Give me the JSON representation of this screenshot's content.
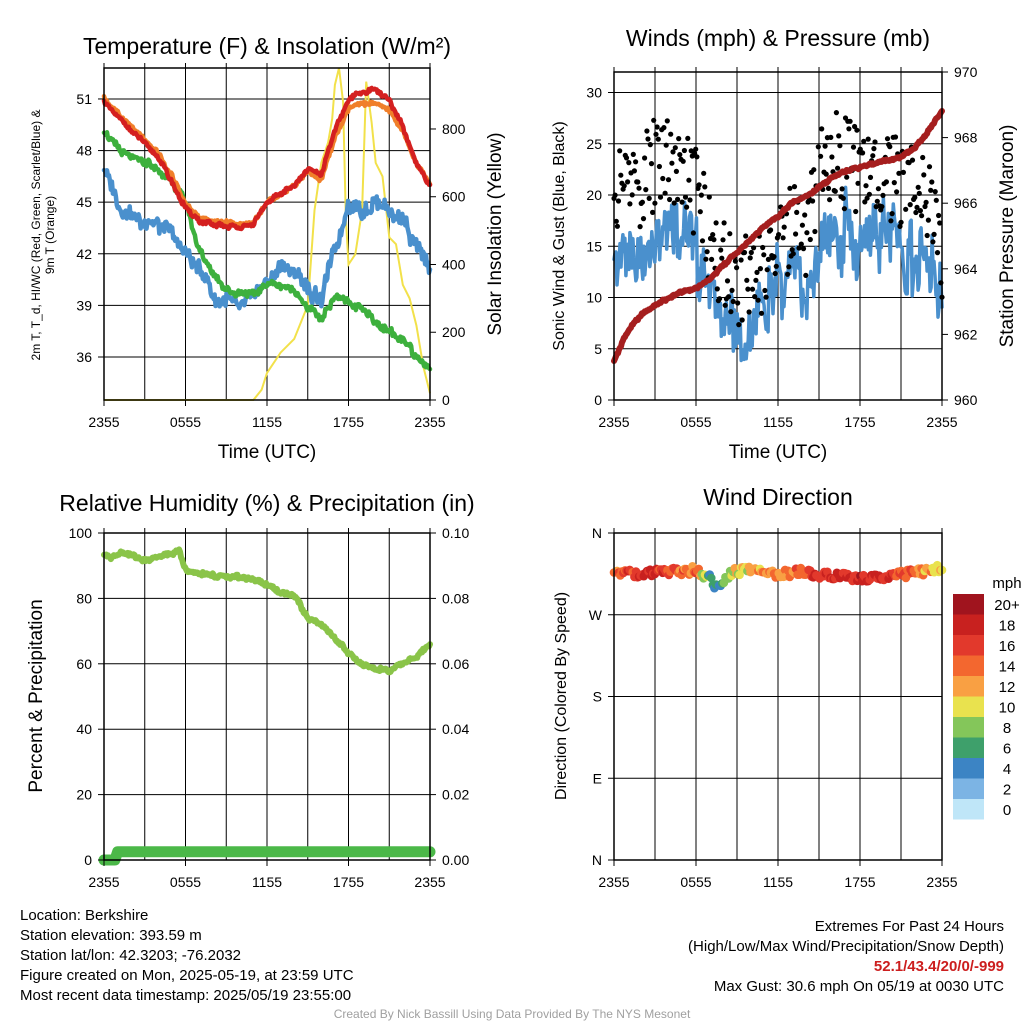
{
  "chart_data": [
    {
      "type": "line",
      "title": "Temperature (F) & Insolation (W/m²)",
      "xlabel": "Time (UTC)",
      "ylabel": "2m T, T_d, HI/WC (Red, Green, Scarlet/Blue) & 9m T (Orange)",
      "ylabel_right": "Solar Insolation (Yellow)",
      "x_ticks": [
        "2355",
        "0555",
        "1155",
        "1755",
        "2355"
      ],
      "ylim": [
        33.5,
        52.8
      ],
      "y_ticks": [
        36,
        39,
        42,
        45,
        48,
        51
      ],
      "ylim_right": [
        0,
        980
      ],
      "y_ticks_right": [
        0,
        200,
        400,
        600,
        800
      ],
      "grid": true,
      "series": [
        {
          "name": "2m T",
          "axis": "left",
          "color": "#d42020",
          "x": [
            0,
            1,
            2,
            3,
            4,
            5,
            6,
            7,
            8,
            9,
            10,
            11,
            12,
            13,
            14,
            15,
            16,
            17,
            18,
            19,
            20,
            21,
            22,
            23,
            24
          ],
          "values": [
            50.8,
            50,
            49.2,
            48.4,
            47.6,
            46.2,
            44.6,
            43.9,
            43.7,
            43.6,
            43.5,
            43.7,
            45,
            45.5,
            46,
            46.9,
            46.6,
            49.2,
            51,
            51.4,
            51.6,
            50.9,
            49.4,
            47.2,
            46
          ]
        },
        {
          "name": "9m T",
          "axis": "left",
          "color": "#f07f2a",
          "x": [
            0,
            1,
            2,
            3,
            4,
            5,
            6,
            7,
            8,
            9,
            10,
            11,
            12,
            13,
            14,
            15,
            16,
            17,
            18,
            19,
            20,
            21,
            22,
            23,
            24
          ],
          "values": [
            51,
            50.2,
            49.4,
            48.6,
            47.8,
            46.5,
            44.9,
            44.1,
            43.9,
            43.8,
            43.7,
            43.8,
            45,
            45.5,
            46,
            46.8,
            46.3,
            48.8,
            50.4,
            50.7,
            50.8,
            50.3,
            49.1,
            47.2,
            46.1
          ]
        },
        {
          "name": "T_d",
          "axis": "left",
          "color": "#3db03d",
          "x": [
            0,
            1,
            2,
            3,
            4,
            5,
            6,
            7,
            8,
            9,
            10,
            11,
            12,
            13,
            14,
            15,
            16,
            17,
            18,
            19,
            20,
            21,
            22,
            23,
            24
          ],
          "values": [
            49.2,
            48.1,
            47.7,
            47.4,
            46.9,
            46.2,
            45,
            42.3,
            40.8,
            40,
            39.6,
            39.7,
            40.2,
            40.2,
            39.8,
            38.9,
            38.2,
            39.5,
            39.2,
            38.7,
            38,
            37.5,
            37,
            36,
            35.3
          ]
        },
        {
          "name": "HI/WC",
          "axis": "left",
          "color": "#4a90cd",
          "x": [
            0,
            1,
            2,
            3,
            4,
            5,
            6,
            7,
            8,
            9,
            10,
            11,
            12,
            13,
            14,
            15,
            16,
            17,
            18,
            19,
            20,
            21,
            22,
            23,
            24
          ],
          "values": [
            46.9,
            44.8,
            44.2,
            43.9,
            43.6,
            43.2,
            42,
            41.2,
            39.6,
            39.2,
            38.9,
            39.4,
            40.5,
            41.1,
            41.1,
            39.8,
            39.4,
            42.3,
            44.8,
            44.5,
            44.9,
            44.4,
            43.9,
            42.4,
            41.4
          ]
        },
        {
          "name": "Solar Insolation",
          "axis": "right",
          "color": "#f2e14a",
          "x": [
            0,
            2,
            4,
            6,
            7,
            8,
            9,
            10,
            11,
            11.6,
            12,
            13,
            14,
            15,
            15.5,
            16,
            16.5,
            16.8,
            17,
            17.3,
            17.6,
            17.8,
            18,
            18.5,
            19,
            19.3,
            19.7,
            20,
            20.5,
            21,
            21.5,
            22,
            22.5,
            23,
            23.5,
            24
          ],
          "values": [
            0,
            0,
            0,
            0,
            0,
            0,
            0,
            0,
            0,
            30,
            80,
            140,
            180,
            280,
            560,
            700,
            760,
            830,
            930,
            980,
            880,
            540,
            400,
            430,
            560,
            940,
            820,
            700,
            660,
            480,
            460,
            340,
            300,
            220,
            100,
            20
          ]
        }
      ]
    },
    {
      "type": "line",
      "title": "Winds (mph) & Pressure (mb)",
      "xlabel": "Time (UTC)",
      "ylabel": "Sonic Wind & Gust (Blue, Black)",
      "ylabel_right": "Station Pressure (Maroon)",
      "x_ticks": [
        "2355",
        "0555",
        "1155",
        "1755",
        "2355"
      ],
      "ylim": [
        0,
        32
      ],
      "y_ticks": [
        0,
        5,
        10,
        15,
        20,
        25,
        30
      ],
      "ylim_right": [
        960,
        970
      ],
      "y_ticks_right": [
        960,
        962,
        964,
        966,
        968,
        970
      ],
      "grid": true,
      "series": [
        {
          "name": "Sonic Wind",
          "axis": "left",
          "color": "#4a90cd",
          "x": [
            0,
            1,
            2,
            3,
            4,
            5,
            6,
            7,
            8,
            9,
            10,
            11,
            12,
            13,
            14,
            15,
            16,
            17,
            18,
            19,
            20,
            21,
            22,
            23,
            24
          ],
          "values": [
            12,
            14.5,
            14,
            15.5,
            16,
            16.5,
            15,
            11,
            8,
            6.5,
            7,
            9,
            11,
            12.5,
            11.5,
            15,
            16,
            16.5,
            15,
            15.5,
            16,
            15,
            13,
            14,
            9
          ]
        },
        {
          "name": "Gust",
          "axis": "left",
          "color": "#000000",
          "x": [
            0,
            1,
            2,
            3,
            4,
            5,
            6,
            7,
            8,
            9,
            10,
            11,
            12,
            13,
            14,
            15,
            16,
            17,
            18,
            19,
            20,
            21,
            22,
            23,
            24
          ],
          "values": [
            19,
            22,
            21,
            23,
            24,
            22,
            20,
            16,
            13,
            11,
            12,
            13,
            15,
            17,
            16,
            22,
            24,
            23,
            22,
            21,
            22,
            21,
            20,
            19,
            14
          ]
        },
        {
          "name": "Station Pressure",
          "axis": "right",
          "color": "#a51e1e",
          "x": [
            0,
            1,
            2,
            3,
            4,
            5,
            6,
            7,
            8,
            9,
            10,
            11,
            12,
            13,
            14,
            15,
            16,
            17,
            18,
            19,
            20,
            21,
            22,
            23,
            24
          ],
          "values": [
            961.2,
            962.1,
            962.6,
            962.9,
            963.1,
            963.3,
            963.4,
            963.7,
            964.1,
            964.5,
            964.9,
            965.3,
            965.6,
            966,
            966.2,
            966.5,
            966.8,
            967,
            967.1,
            967.2,
            967.3,
            967.4,
            967.7,
            968.2,
            968.8
          ]
        }
      ]
    },
    {
      "type": "line",
      "title": "Relative Humidity (%) & Precipitation (in)",
      "xlabel": "",
      "ylabel": "Percent & Precipitation",
      "x_ticks": [
        "2355",
        "0555",
        "1155",
        "1755",
        "2355"
      ],
      "ylim": [
        0,
        100
      ],
      "y_ticks": [
        0,
        20,
        40,
        60,
        80,
        100
      ],
      "ylim_right": [
        0,
        0.1
      ],
      "y_ticks_right": [
        "0.00",
        "0.02",
        "0.04",
        "0.06",
        "0.08",
        "0.10"
      ],
      "grid": true,
      "series": [
        {
          "name": "Relative Humidity",
          "axis": "left",
          "color": "#8ac449",
          "x": [
            0,
            0.5,
            1,
            2,
            3,
            4,
            5,
            5.5,
            6,
            7,
            8,
            9,
            10,
            11,
            12,
            13,
            14,
            15,
            16,
            17,
            18,
            19,
            20,
            21,
            22,
            23,
            24
          ],
          "values": [
            93.5,
            92,
            94,
            93,
            91.5,
            92.5,
            93.5,
            95,
            88.5,
            87.5,
            87,
            86.5,
            86.5,
            86,
            84,
            82,
            81,
            74,
            72,
            68,
            63,
            60,
            58.5,
            58,
            60,
            62,
            66
          ]
        },
        {
          "name": "Precipitation",
          "axis": "left",
          "color": "#4bb848",
          "x": [
            0,
            0.8,
            1,
            24
          ],
          "values": [
            0,
            0,
            2.5,
            2.5
          ]
        }
      ]
    },
    {
      "type": "scatter",
      "title": "Wind Direction",
      "xlabel": "",
      "ylabel": "Direction (Colored By Speed)",
      "x_ticks": [
        "2355",
        "0555",
        "1155",
        "1755",
        "2355"
      ],
      "y_ticks": [
        "N",
        "E",
        "S",
        "W",
        "N"
      ],
      "ylim": [
        0,
        360
      ],
      "grid": true,
      "legend": {
        "title": "mph",
        "labels": [
          "20+",
          "18",
          "16",
          "14",
          "12",
          "10",
          "8",
          "6",
          "4",
          "2",
          "0"
        ],
        "colors": [
          "#a0141e",
          "#c8211f",
          "#e2392c",
          "#f3672f",
          "#f9a043",
          "#e9e24e",
          "#84c65a",
          "#3ea06b",
          "#3c84c4",
          "#7cb4e4",
          "#bfe6f8"
        ]
      },
      "series": [
        {
          "name": "Direction",
          "x": [
            0,
            1,
            2,
            3,
            4,
            5,
            6,
            7,
            7.5,
            8,
            8.5,
            9,
            10,
            11,
            12,
            13,
            14,
            15,
            16,
            17,
            18,
            19,
            20,
            21,
            22,
            23,
            24
          ],
          "values": [
            318,
            316,
            314,
            316,
            318,
            316,
            320,
            310,
            298,
            306,
            316,
            318,
            320,
            317,
            314,
            316,
            318,
            314,
            313,
            312,
            311,
            311,
            313,
            314,
            316,
            318,
            322
          ],
          "speeds": [
            14,
            16,
            17,
            16,
            15,
            14,
            14,
            6,
            4,
            7,
            9,
            10,
            11,
            12,
            13,
            14,
            15,
            16,
            17,
            17,
            17,
            18,
            16,
            15,
            14,
            12,
            10
          ]
        }
      ]
    }
  ],
  "info": {
    "location": "Location: Berkshire",
    "elevation": "Station elevation: 393.59 m",
    "latlon": "Station lat/lon: 42.3203; -76.2032",
    "created": "Figure created on Mon, 2025-05-19, at 23:59 UTC",
    "recent": "Most recent data timestamp: 2025/05/19 23:55:00",
    "extremes_title": "Extremes For Past 24 Hours",
    "extremes_subtitle": "(High/Low/Max Wind/Precipitation/Snow Depth)",
    "extremes_values": "52.1/43.4/20/0/-999",
    "max_gust": "Max Gust: 30.6 mph On 05/19 at 0030 UTC",
    "credit": "Created By Nick Bassill Using Data Provided By The NYS Mesonet"
  }
}
